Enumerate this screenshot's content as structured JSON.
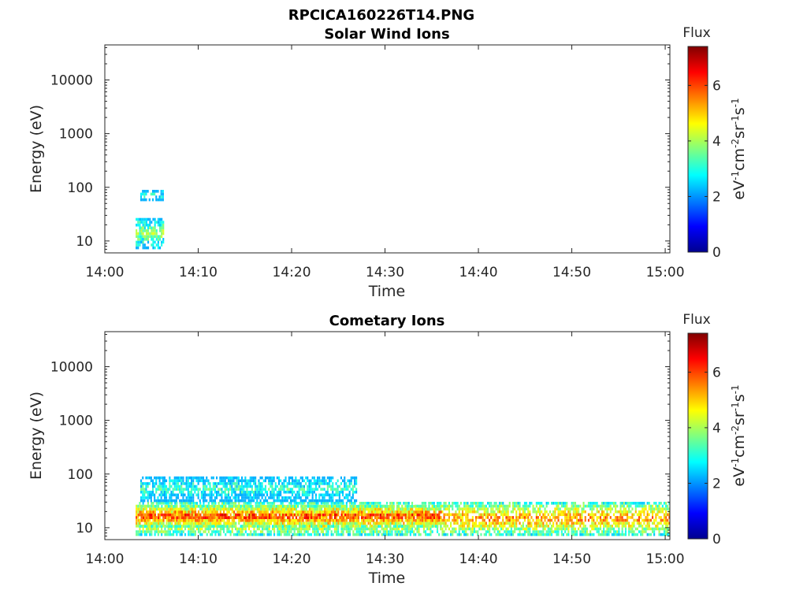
{
  "figure": {
    "title": "RPCICA160226T14.PNG"
  },
  "colors": {
    "colormap": "jet",
    "axis": "#262626",
    "background": "#ffffff"
  },
  "chart_data": [
    {
      "type": "heatmap",
      "title": "Solar Wind Ions",
      "xlabel": "Time",
      "ylabel": "Energy (eV)",
      "x_ticks": [
        "14:00",
        "14:10",
        "14:20",
        "14:30",
        "14:40",
        "14:50",
        "15:00"
      ],
      "xlim_minutes": [
        0,
        60.5
      ],
      "y_scale": "log",
      "y_ticks": [
        10,
        100,
        1000,
        10000
      ],
      "y_tick_labels": [
        "10",
        "100",
        "1000",
        "10000"
      ],
      "ylim": [
        6,
        45000
      ],
      "colorbar": {
        "label_top": "Flux",
        "unit": "eV-1cm-2sr-1s-1",
        "ticks": [
          0,
          2,
          4,
          6
        ],
        "range": [
          0,
          7.4
        ]
      },
      "activity": [
        {
          "t_start": 3.3,
          "t_end": 6.3,
          "e_min": 7,
          "e_max": 25,
          "flux": 3.9
        },
        {
          "t_start": 3.8,
          "t_end": 6.3,
          "e_min": 55,
          "e_max": 85,
          "flux": 3.0
        }
      ]
    },
    {
      "type": "heatmap",
      "title": "Cometary Ions",
      "xlabel": "Time",
      "ylabel": "Energy (eV)",
      "x_ticks": [
        "14:00",
        "14:10",
        "14:20",
        "14:30",
        "14:40",
        "14:50",
        "15:00"
      ],
      "xlim_minutes": [
        0,
        60.5
      ],
      "y_scale": "log",
      "y_ticks": [
        10,
        100,
        1000,
        10000
      ],
      "y_tick_labels": [
        "10",
        "100",
        "1000",
        "10000"
      ],
      "ylim": [
        6,
        45000
      ],
      "colorbar": {
        "label_top": "Flux",
        "unit": "eV-1cm-2sr-1s-1",
        "ticks": [
          0,
          2,
          4,
          6
        ],
        "range": [
          0,
          7.4
        ]
      },
      "activity": [
        {
          "t_start": 3.3,
          "t_end": 60.5,
          "e_min": 7,
          "e_max": 28,
          "flux": 5.5
        },
        {
          "t_start": 3.5,
          "t_end": 36,
          "e_min": 10,
          "e_max": 24,
          "flux": 6.3
        },
        {
          "t_start": 3.8,
          "t_end": 27,
          "e_min": 30,
          "e_max": 85,
          "flux": 3.2
        }
      ]
    }
  ]
}
